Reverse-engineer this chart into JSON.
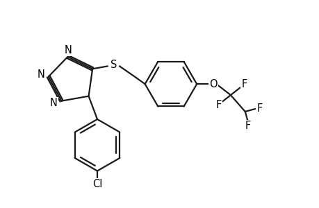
{
  "bg_color": "#ffffff",
  "line_color": "#1a1a1a",
  "text_color": "#000000",
  "bond_lw": 1.6,
  "font_size": 10.5,
  "fig_width": 4.6,
  "fig_height": 3.0,
  "dpi": 100,
  "xlim": [
    0.0,
    9.2
  ],
  "ylim": [
    0.5,
    6.2
  ]
}
